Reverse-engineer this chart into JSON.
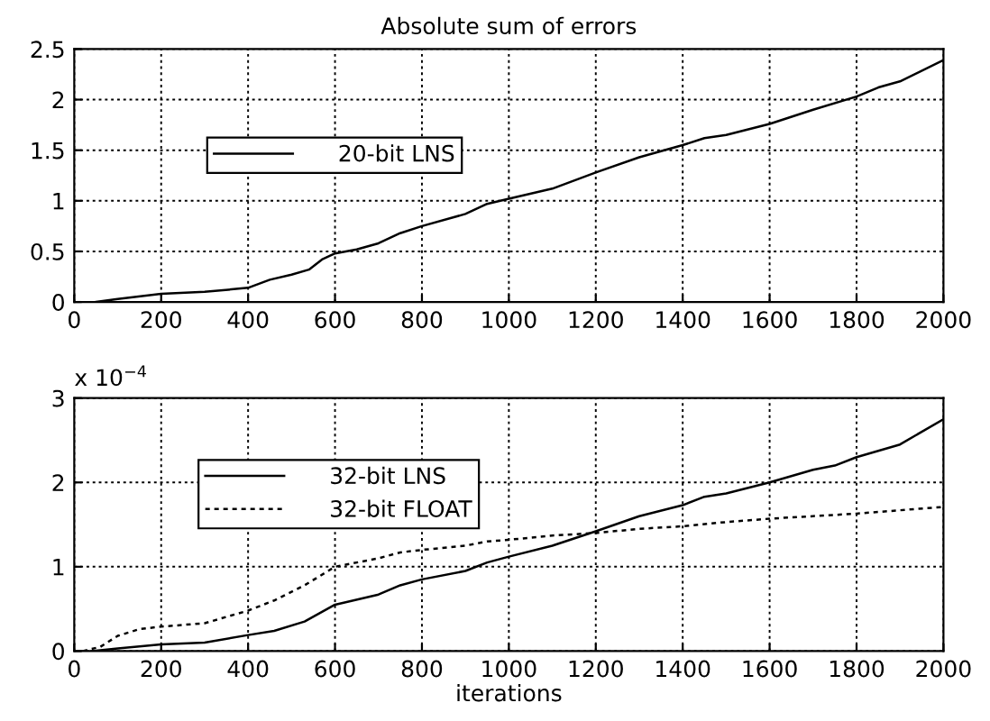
{
  "chart_data": [
    {
      "type": "line",
      "title": "Absolute sum of errors",
      "xlim": [
        0,
        2000
      ],
      "xticks": [
        0,
        200,
        400,
        600,
        800,
        1000,
        1200,
        1400,
        1600,
        1800,
        2000
      ],
      "ylim": [
        0,
        2.5
      ],
      "yticks": [
        0,
        0.5,
        1,
        1.5,
        2,
        2.5
      ],
      "grid": true,
      "legend": "left",
      "series": [
        {
          "name": "20-bit LNS",
          "color": "#000000",
          "line_style": "solid",
          "x": [
            50,
            100,
            200,
            300,
            400,
            450,
            500,
            540,
            570,
            600,
            650,
            700,
            750,
            800,
            900,
            950,
            1000,
            1100,
            1200,
            1300,
            1400,
            1450,
            1500,
            1600,
            1700,
            1800,
            1850,
            1900,
            2000
          ],
          "values": [
            0,
            0.03,
            0.08,
            0.1,
            0.14,
            0.22,
            0.27,
            0.32,
            0.42,
            0.48,
            0.52,
            0.58,
            0.68,
            0.75,
            0.87,
            0.97,
            1.02,
            1.12,
            1.28,
            1.43,
            1.55,
            1.62,
            1.65,
            1.76,
            1.9,
            2.03,
            2.12,
            2.18,
            2.39
          ]
        }
      ]
    },
    {
      "type": "line",
      "xlabel": "iterations",
      "annotations": [
        "x 10$^{−4}$"
      ],
      "xlim": [
        0,
        2000
      ],
      "xticks": [
        0,
        200,
        400,
        600,
        800,
        1000,
        1200,
        1400,
        1600,
        1800,
        2000
      ],
      "ylim": [
        0,
        3
      ],
      "yticks": [
        0,
        1,
        2,
        3
      ],
      "grid": true,
      "legend": "upper left",
      "series": [
        {
          "name": "32-bit LNS",
          "color": "#000000",
          "line_style": "solid",
          "x": [
            40,
            100,
            200,
            300,
            400,
            460,
            530,
            600,
            700,
            750,
            800,
            900,
            950,
            1000,
            1100,
            1200,
            1300,
            1400,
            1450,
            1500,
            1600,
            1700,
            1750,
            1800,
            1900,
            2000
          ],
          "values": [
            0,
            0.03,
            0.08,
            0.1,
            0.19,
            0.24,
            0.35,
            0.55,
            0.67,
            0.78,
            0.85,
            0.95,
            1.05,
            1.12,
            1.25,
            1.42,
            1.6,
            1.73,
            1.83,
            1.87,
            2.0,
            2.15,
            2.2,
            2.3,
            2.45,
            2.75
          ]
        },
        {
          "name": "32-bit FLOAT",
          "color": "#000000",
          "line_style": "dotted",
          "x": [
            20,
            60,
            100,
            150,
            200,
            300,
            400,
            460,
            530,
            600,
            700,
            750,
            800,
            900,
            950,
            1000,
            1100,
            1200,
            1300,
            1400,
            1500,
            1600,
            1800,
            2000
          ],
          "values": [
            0,
            0.05,
            0.18,
            0.26,
            0.29,
            0.33,
            0.48,
            0.6,
            0.78,
            1.0,
            1.1,
            1.17,
            1.2,
            1.25,
            1.3,
            1.32,
            1.37,
            1.4,
            1.45,
            1.48,
            1.53,
            1.57,
            1.63,
            1.71
          ]
        }
      ]
    }
  ]
}
